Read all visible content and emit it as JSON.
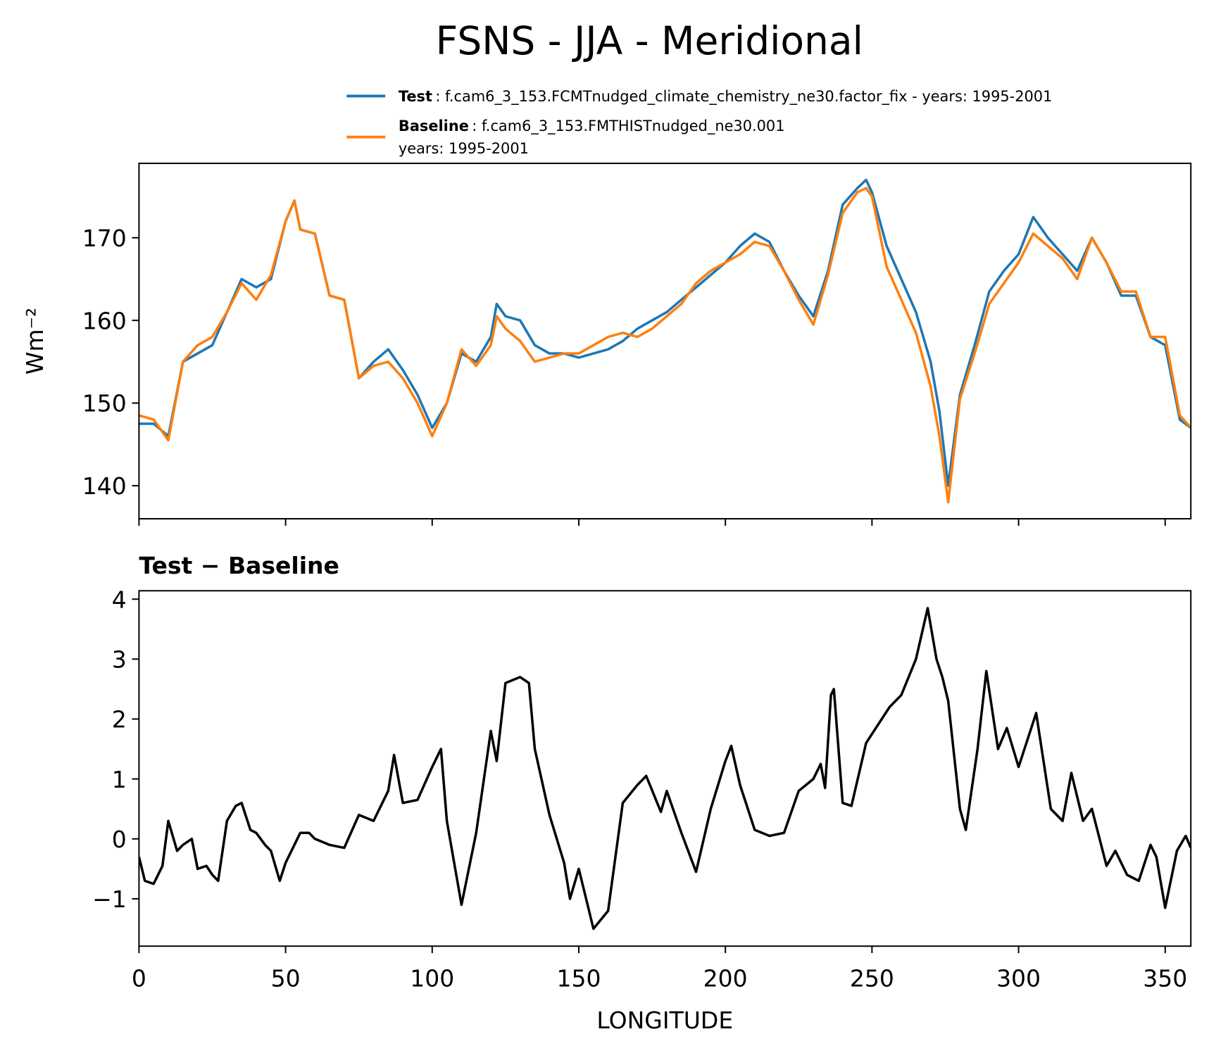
{
  "title": "FSNS - JJA - Meridional",
  "chart_data": [
    {
      "type": "line",
      "ylabel": "Wm⁻²",
      "x": [
        0,
        5,
        10,
        15,
        20,
        25,
        30,
        35,
        40,
        45,
        50,
        53,
        55,
        60,
        65,
        70,
        75,
        80,
        85,
        90,
        95,
        100,
        105,
        110,
        115,
        120,
        122,
        125,
        130,
        135,
        140,
        145,
        150,
        155,
        160,
        165,
        170,
        175,
        180,
        185,
        190,
        195,
        200,
        205,
        210,
        215,
        220,
        225,
        230,
        235,
        240,
        245,
        248,
        250,
        255,
        260,
        265,
        270,
        273,
        276,
        280,
        285,
        290,
        295,
        300,
        305,
        310,
        315,
        320,
        325,
        330,
        335,
        340,
        345,
        350,
        355,
        358.75
      ],
      "series": [
        {
          "name": "Test",
          "detail": [
            ": f.cam6_3_153.FCMTnudged_climate_chemistry_ne30.factor_fix - years: 1995-2001"
          ],
          "color": "#1f77b4",
          "values": [
            147.5,
            147.5,
            146,
            155,
            156,
            157,
            161,
            165,
            164,
            165,
            172,
            174.5,
            171,
            170.5,
            163,
            162.5,
            153,
            155,
            156.5,
            154,
            151,
            147,
            150,
            156,
            155,
            158,
            162,
            160.5,
            160,
            157,
            156,
            156,
            155.5,
            156,
            156.5,
            157.5,
            159,
            160,
            161,
            162.5,
            164,
            165.5,
            167,
            169,
            170.5,
            169.5,
            166,
            163,
            160.5,
            166,
            174,
            176,
            177,
            175.5,
            169,
            165,
            161,
            155,
            149,
            140,
            151,
            157,
            163.5,
            166,
            168,
            172.5,
            170,
            168,
            166,
            170,
            167,
            163,
            163,
            158,
            157,
            148,
            147
          ]
        },
        {
          "name": "Baseline",
          "detail": [
            ": f.cam6_3_153.FMTHISTnudged_ne30.001",
            "years: 1995-2001"
          ],
          "color": "#ff7f0e",
          "values": [
            148.5,
            148,
            145.5,
            155,
            157,
            158,
            161,
            164.5,
            162.5,
            165.5,
            172,
            174.5,
            171,
            170.5,
            163,
            162.5,
            153,
            154.5,
            155,
            153,
            150,
            146,
            150,
            156.5,
            154.5,
            157,
            160.5,
            159,
            157.5,
            155,
            155.5,
            156,
            156,
            157,
            158,
            158.5,
            158,
            159,
            160.5,
            162,
            164.5,
            166,
            167,
            168,
            169.5,
            169,
            166,
            162.5,
            159.5,
            165.5,
            173,
            175.5,
            176,
            175,
            166.5,
            162.5,
            158.5,
            152,
            146,
            138,
            150.5,
            156,
            162,
            164.5,
            167,
            170.5,
            169,
            167.5,
            165,
            170,
            167,
            163.5,
            163.5,
            158,
            158,
            148.5,
            147
          ]
        }
      ],
      "xlim": [
        0,
        358.75
      ],
      "xticks": [
        0,
        50,
        100,
        150,
        200,
        250,
        300,
        350
      ],
      "ylim": [
        136,
        179
      ],
      "yticks": [
        140,
        150,
        160,
        170
      ]
    },
    {
      "type": "line",
      "title": "Test − Baseline",
      "xlabel": "LONGITUDE",
      "x": [
        0,
        2,
        5,
        8,
        10,
        13,
        15,
        18,
        20,
        23,
        25,
        27,
        30,
        33,
        35,
        38,
        40,
        43,
        45,
        48,
        50,
        55,
        58,
        60,
        65,
        70,
        75,
        80,
        85,
        87,
        90,
        95,
        100,
        103,
        105,
        110,
        115,
        120,
        122,
        125,
        130,
        133,
        135,
        140,
        145,
        147,
        150,
        155,
        160,
        165,
        170,
        173,
        178,
        180,
        185,
        190,
        195,
        200,
        202,
        205,
        210,
        215,
        220,
        225,
        230,
        232.5,
        234,
        236,
        237,
        240,
        243,
        248,
        256,
        260,
        265,
        269,
        272,
        274,
        276,
        280,
        282,
        286,
        289,
        293,
        296,
        300,
        306,
        311,
        315,
        318,
        322,
        325,
        330,
        333,
        337,
        341,
        345,
        347,
        350,
        354,
        357,
        358.75
      ],
      "series": [
        {
          "color": "#000000",
          "values": [
            -0.3,
            -0.7,
            -0.75,
            -0.45,
            0.3,
            -0.2,
            -0.1,
            0.0,
            -0.5,
            -0.45,
            -0.6,
            -0.7,
            0.3,
            0.55,
            0.6,
            0.15,
            0.1,
            -0.1,
            -0.2,
            -0.7,
            -0.4,
            0.1,
            0.1,
            0.0,
            -0.1,
            -0.15,
            0.4,
            0.3,
            0.8,
            1.4,
            0.6,
            0.65,
            1.2,
            1.5,
            0.3,
            -1.1,
            0.1,
            1.8,
            1.3,
            2.6,
            2.7,
            2.6,
            1.5,
            0.4,
            -0.4,
            -1.0,
            -0.5,
            -1.5,
            -1.2,
            0.6,
            0.9,
            1.05,
            0.45,
            0.8,
            0.1,
            -0.55,
            0.5,
            1.3,
            1.55,
            0.9,
            0.15,
            0.05,
            0.1,
            0.8,
            1.0,
            1.25,
            0.85,
            2.4,
            2.5,
            0.6,
            0.55,
            1.6,
            2.2,
            2.4,
            3.0,
            3.85,
            3.0,
            2.7,
            2.3,
            0.5,
            0.15,
            1.5,
            2.8,
            1.5,
            1.85,
            1.2,
            2.1,
            0.5,
            0.3,
            1.1,
            0.3,
            0.5,
            -0.45,
            -0.2,
            -0.6,
            -0.7,
            -0.1,
            -0.3,
            -1.15,
            -0.2,
            0.05,
            -0.15
          ]
        }
      ],
      "xlim": [
        0,
        358.75
      ],
      "xticks": [
        0,
        50,
        100,
        150,
        200,
        250,
        300,
        350
      ],
      "ylim": [
        -1.79,
        4.14
      ],
      "yticks": [
        {
          "value": -1,
          "label": "−1"
        },
        0,
        1,
        2,
        3,
        4
      ]
    }
  ]
}
